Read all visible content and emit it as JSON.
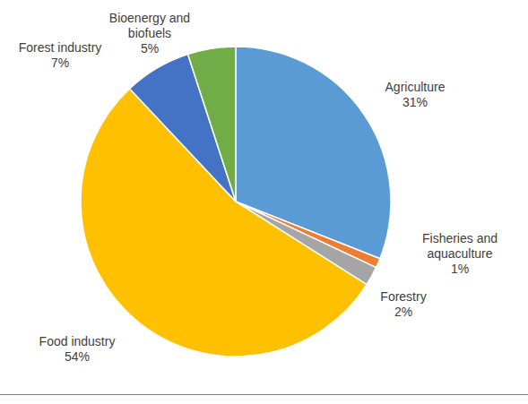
{
  "chart_data": {
    "type": "pie",
    "categories": [
      "Agriculture",
      "Fisheries and aquaculture",
      "Forestry",
      "Food industry",
      "Forest industry",
      "Bioenergy and biofuels"
    ],
    "values": [
      31,
      1,
      2,
      54,
      7,
      5
    ],
    "value_labels": [
      "31%",
      "1%",
      "2%",
      "54%",
      "7%",
      "5%"
    ],
    "colors": [
      "#5b9bd5",
      "#ed7d31",
      "#a5a5a5",
      "#ffc000",
      "#4472c4",
      "#70ad47"
    ],
    "data_labels": true
  }
}
